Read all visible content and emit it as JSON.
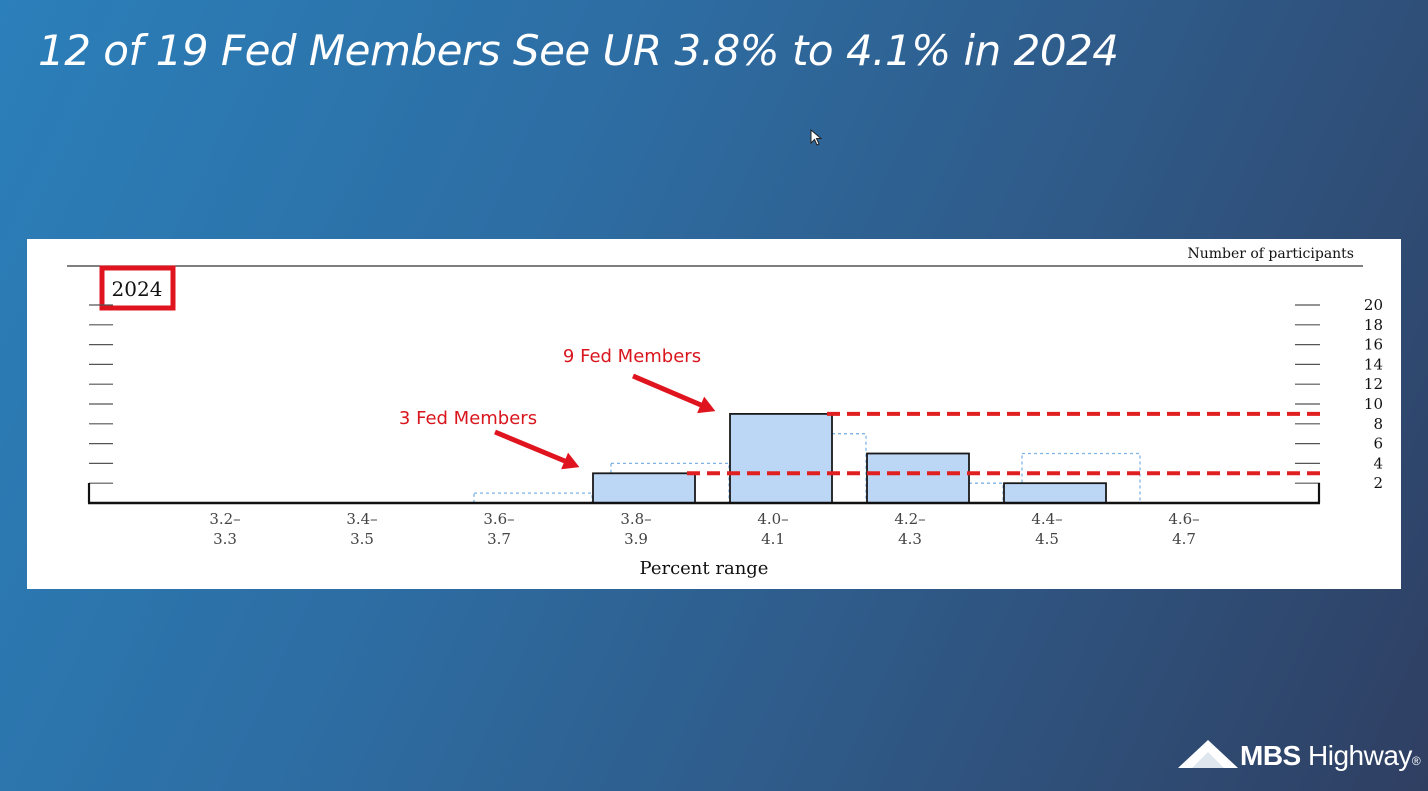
{
  "slide": {
    "title": "12 of 19 Fed Members See UR 3.8% to 4.1% in 2024"
  },
  "brand": {
    "logo_bold": "MBS",
    "logo_light": "Highway",
    "logo_mark": "®"
  },
  "chart_data": {
    "type": "bar",
    "year_label": "2024",
    "right_axis_label": "Number of participants",
    "xlabel": "Percent range",
    "ylabel": "",
    "ylim": [
      0,
      20
    ],
    "yticks": [
      2,
      4,
      6,
      8,
      10,
      12,
      14,
      16,
      18,
      20
    ],
    "categories": [
      {
        "top": "3.2–",
        "bottom": "3.3"
      },
      {
        "top": "3.4–",
        "bottom": "3.5"
      },
      {
        "top": "3.6–",
        "bottom": "3.7"
      },
      {
        "top": "3.8–",
        "bottom": "3.9"
      },
      {
        "top": "4.0–",
        "bottom": "4.1"
      },
      {
        "top": "4.2–",
        "bottom": "4.3"
      },
      {
        "top": "4.4–",
        "bottom": "4.5"
      },
      {
        "top": "4.6–",
        "bottom": "4.7"
      }
    ],
    "series": [
      {
        "values": [
          0,
          0,
          0,
          3,
          9,
          5,
          2,
          0
        ]
      },
      {
        "values": [
          0,
          0,
          1,
          4,
          7,
          2,
          5,
          0
        ]
      }
    ],
    "reference_lines": [
      9,
      3
    ],
    "reference_color": "#e02020",
    "annotations": [
      {
        "text": "9 Fed Members",
        "points_to_category": 4,
        "value": 9
      },
      {
        "text": "3 Fed Members",
        "points_to_category": 3,
        "value": 3
      }
    ],
    "colors": {
      "bar_fill": "#bcd6f5",
      "bar_stroke": "#1a1a1a",
      "dotted": "#7fb3e6",
      "highlight_box": "#e0141e"
    }
  }
}
